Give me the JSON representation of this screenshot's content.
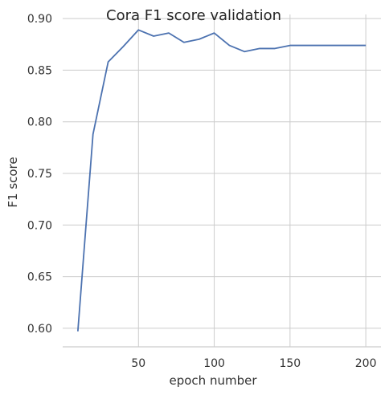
{
  "chart_data": {
    "type": "line",
    "title": "Cora F1 score validation",
    "xlabel": "epoch number",
    "ylabel": "F1 score",
    "xlim": [
      0,
      210
    ],
    "ylim": [
      0.582,
      0.904
    ],
    "x_ticks": [
      50,
      100,
      150,
      200
    ],
    "y_ticks": [
      0.6,
      0.65,
      0.7,
      0.75,
      0.8,
      0.85,
      0.9
    ],
    "grid": true,
    "color": "#4c72b0",
    "series": [
      {
        "x": [
          10,
          20,
          30,
          40,
          50,
          60,
          70,
          80,
          90,
          100,
          110,
          120,
          130,
          140,
          150,
          160,
          170,
          180,
          190,
          200
        ],
        "values": [
          0.597,
          0.788,
          0.858,
          0.873,
          0.889,
          0.883,
          0.886,
          0.877,
          0.88,
          0.886,
          0.874,
          0.868,
          0.871,
          0.871,
          0.874,
          0.874,
          0.874,
          0.874,
          0.874,
          0.874
        ]
      }
    ]
  }
}
